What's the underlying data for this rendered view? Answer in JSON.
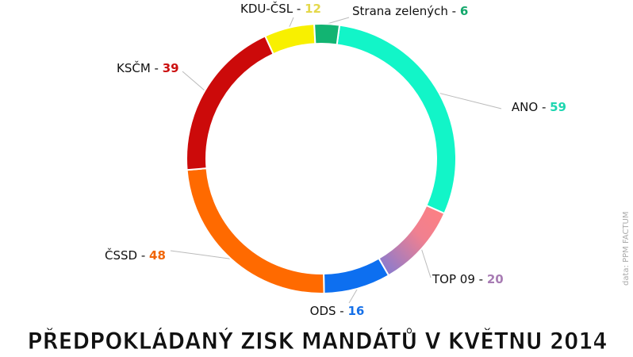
{
  "chart_data": {
    "type": "donut",
    "title": "PŘEDPOKLÁDANÝ ZISK MANDÁTŮ V KVĚTNU 2014",
    "source": "data: PPM FACTUM",
    "label_separator": " - ",
    "categories": [
      "ANO",
      "TOP 09",
      "ODS",
      "ČSSD",
      "KSČM",
      "KDU-ČSL",
      "Strana zelených"
    ],
    "values": [
      59,
      20,
      16,
      48,
      39,
      12,
      6
    ],
    "colors": [
      "#12f5c8",
      "#f07a8e",
      "#0d6ff0",
      "#ff6a00",
      "#cc0a0a",
      "#f8f000",
      "#12b472"
    ],
    "value_colors": [
      "#1ed6b0",
      "#a87cb4",
      "#1570e8",
      "#f0660a",
      "#cc1010",
      "#e4d84a",
      "#14a86c"
    ]
  }
}
